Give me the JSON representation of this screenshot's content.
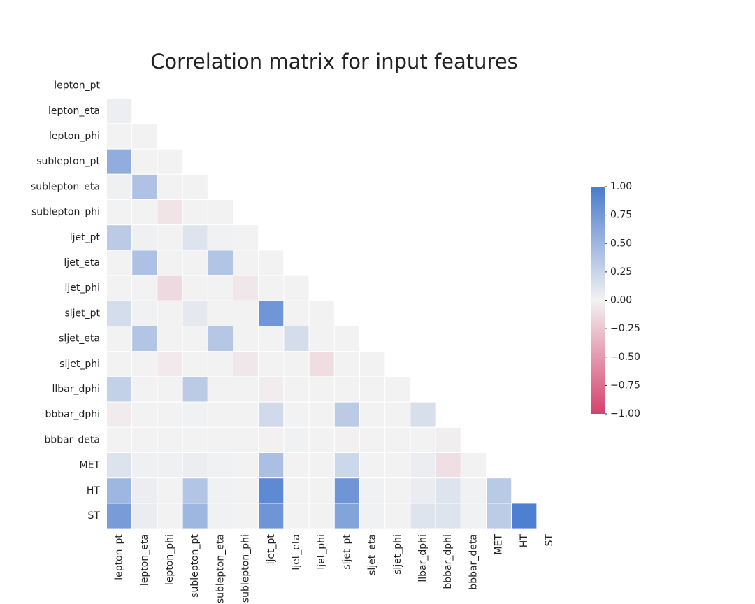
{
  "chart_data": {
    "type": "heatmap",
    "title": "Correlation matrix for input features",
    "mask": "upper-triangle-and-diagonal",
    "labels": [
      "lepton_pt",
      "lepton_eta",
      "lepton_phi",
      "sublepton_pt",
      "sublepton_eta",
      "sublepton_phi",
      "ljet_pt",
      "ljet_eta",
      "ljet_phi",
      "sljet_pt",
      "sljet_eta",
      "sljet_phi",
      "llbar_dphi",
      "bbbar_dphi",
      "bbbar_deta",
      "MET",
      "HT",
      "ST"
    ],
    "lower_triangle_rows": [
      [],
      [
        0.03
      ],
      [
        0.0,
        0.0
      ],
      [
        0.58,
        0.0,
        0.0
      ],
      [
        0.02,
        0.4,
        0.0,
        0.0
      ],
      [
        0.0,
        0.0,
        -0.08,
        0.0,
        0.0
      ],
      [
        0.33,
        0.02,
        0.0,
        0.12,
        0.01,
        0.0
      ],
      [
        0.0,
        0.41,
        0.0,
        0.0,
        0.38,
        0.0,
        0.0
      ],
      [
        0.0,
        0.0,
        -0.14,
        0.0,
        0.0,
        -0.06,
        0.0,
        0.0
      ],
      [
        0.18,
        0.01,
        0.0,
        0.08,
        0.0,
        0.0,
        0.77,
        0.0,
        0.0
      ],
      [
        0.0,
        0.38,
        0.0,
        0.0,
        0.36,
        0.0,
        0.0,
        0.18,
        0.0,
        0.0
      ],
      [
        0.0,
        0.0,
        -0.05,
        0.0,
        0.0,
        -0.06,
        0.0,
        0.0,
        -0.12,
        0.0,
        0.0
      ],
      [
        0.28,
        0.0,
        0.0,
        0.33,
        0.0,
        0.0,
        -0.03,
        0.0,
        0.0,
        0.0,
        0.0,
        0.0
      ],
      [
        -0.04,
        0.0,
        0.0,
        0.01,
        0.0,
        0.0,
        0.2,
        0.0,
        0.0,
        0.33,
        0.0,
        0.0,
        0.16
      ],
      [
        0.0,
        0.0,
        0.0,
        0.0,
        0.0,
        0.0,
        -0.01,
        0.01,
        0.0,
        -0.01,
        0.0,
        0.0,
        0.0,
        -0.02
      ],
      [
        0.13,
        0.02,
        0.02,
        0.04,
        0.01,
        0.0,
        0.43,
        0.0,
        0.0,
        0.23,
        0.0,
        0.0,
        0.04,
        -0.11,
        0.0
      ],
      [
        0.5,
        0.04,
        0.0,
        0.38,
        0.01,
        0.0,
        0.88,
        0.0,
        0.0,
        0.78,
        0.01,
        0.0,
        0.05,
        0.12,
        0.01,
        0.34
      ],
      [
        0.72,
        0.05,
        0.0,
        0.5,
        0.01,
        0.0,
        0.78,
        0.0,
        0.0,
        0.66,
        0.01,
        0.0,
        0.12,
        0.12,
        0.01,
        0.32,
        0.97
      ]
    ],
    "colorbar": {
      "vmin": -1.0,
      "vmax": 1.0,
      "ticks": [
        1.0,
        0.75,
        0.5,
        0.25,
        0.0,
        -0.25,
        -0.5,
        -0.75,
        -1.0
      ],
      "tick_labels": [
        "1.00",
        "0.75",
        "0.50",
        "0.25",
        "0.00",
        "−0.25",
        "−0.50",
        "−0.75",
        "−1.00"
      ],
      "colormap": "diverging",
      "low_color": "#d6406e",
      "mid_color": "#f2f2f2",
      "high_color": "#4a7bcf"
    }
  }
}
